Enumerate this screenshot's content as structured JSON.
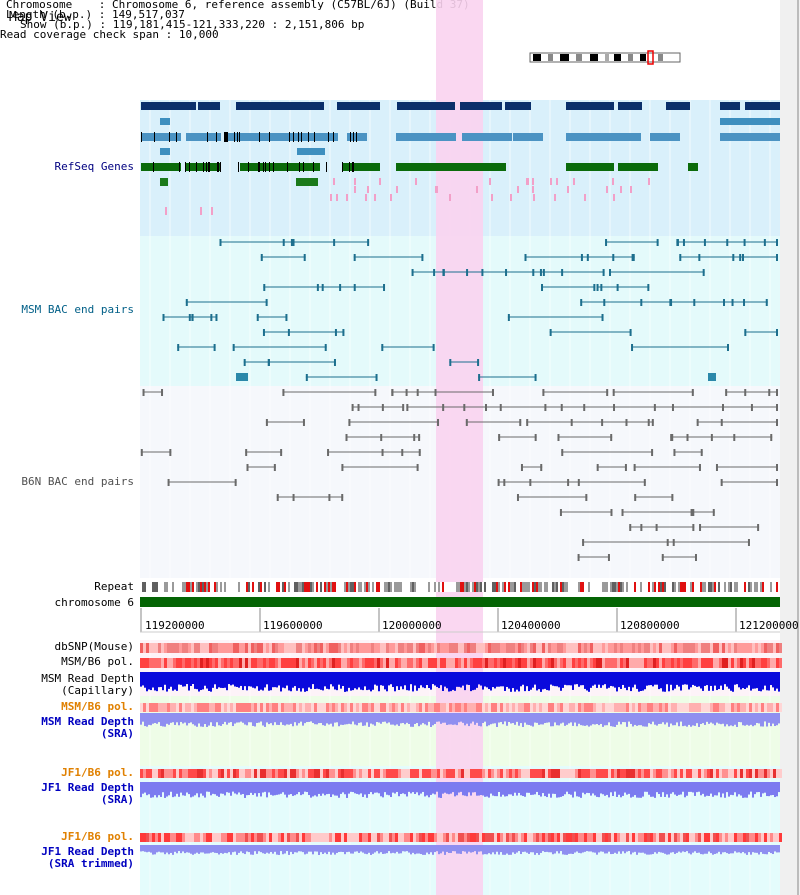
{
  "title": "Map View",
  "info": {
    "chromosome_key": "Chromosome",
    "chromosome_val": "Chromosome 6, reference assembly (C57BL/6J) (Build 37)",
    "length_key": "Length (b.p.)",
    "length_val": "149,517,037",
    "show_key": "Show (b.p.)",
    "show_val": "119,181,415-121,333,220 : 2,151,806 bp",
    "coverage_key": "Read coverage check span",
    "coverage_val": "10,000"
  },
  "tracks": {
    "refseq": "RefSeq Genes",
    "msm_bac": "MSM BAC end pairs",
    "b6n_bac": "B6N BAC end pairs",
    "repeat": "Repeat",
    "chromosome": "chromosome 6",
    "dbsnp": "dbSNP(Mouse)",
    "msm_b6_pol1": "MSM/B6 pol.",
    "msm_depth_cap": "MSM Read Depth\n(Capillary)",
    "msm_b6_pol2": "MSM/B6 pol.",
    "msm_depth_sra": "MSM Read Depth\n(SRA)",
    "jf1_b6_pol1": "JF1/B6 pol.",
    "jf1_depth_sra": "JF1 Read Depth\n(SRA)",
    "jf1_b6_pol2": "JF1/B6 pol.",
    "jf1_depth_trim": "JF1 Read Depth\n(SRA trimmed)"
  },
  "axis": {
    "ticks": [
      "119200000",
      "119600000",
      "120000000",
      "120400000",
      "120800000",
      "121200000"
    ]
  },
  "colors": {
    "refseq_label": "#000080",
    "msm_label": "#005f87",
    "b6n_label": "#505050",
    "pol_label": "#e08000",
    "depth_label": "#0000c0",
    "highlight": "#f9d3f0"
  }
}
